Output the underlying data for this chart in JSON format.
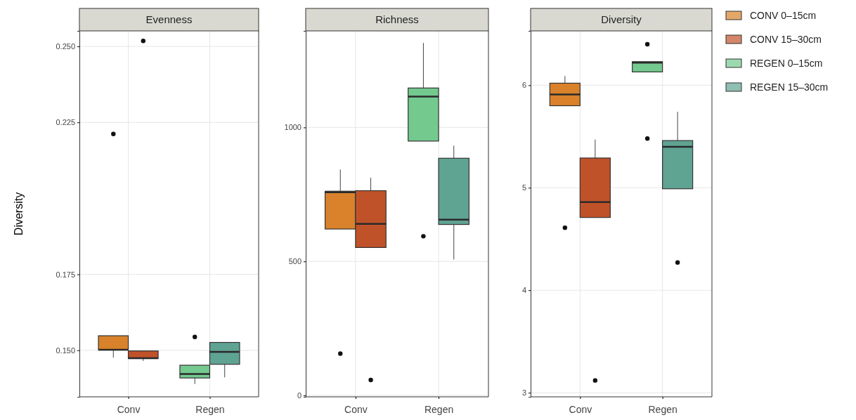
{
  "chart_data": [
    {
      "type": "box",
      "title": "Evenness",
      "ylabel": "Diversity",
      "categories": [
        "Conv",
        "Regen"
      ],
      "ylim": [
        0.1347,
        0.2551
      ],
      "yticks": [
        {
          "value": 0.25,
          "label": "0.250"
        },
        {
          "value": 0.225,
          "label": "0.225"
        },
        {
          "value": 0.175,
          "label": "0.175"
        },
        {
          "value": 0.15,
          "label": "0.150"
        }
      ],
      "grid": true,
      "series": [
        {
          "color": "#d9822b",
          "boxes": [
            {
              "low": 0.1476,
              "q1": 0.1502,
              "median": 0.1502,
              "q3": 0.1548,
              "high": 0.1548,
              "outliers": [
                0.2212
              ]
            },
            null
          ]
        },
        {
          "color": "#c0522a",
          "boxes": [
            {
              "low": 0.1465,
              "q1": 0.1473,
              "median": 0.1474,
              "q3": 0.1498,
              "high": 0.1498,
              "outliers": [
                0.2518
              ]
            },
            null
          ]
        },
        {
          "color": "#74c98f",
          "boxes": [
            null,
            {
              "low": 0.1389,
              "q1": 0.1409,
              "median": 0.1422,
              "q3": 0.1451,
              "high": 0.1451,
              "outliers": [
                0.1544
              ]
            }
          ]
        },
        {
          "color": "#5fa392",
          "boxes": [
            null,
            {
              "low": 0.1411,
              "q1": 0.1454,
              "median": 0.1495,
              "q3": 0.1526,
              "high": 0.1526
            }
          ]
        }
      ]
    },
    {
      "type": "box",
      "title": "Richness",
      "categories": [
        "Conv",
        "Regen"
      ],
      "ylim": [
        -5,
        1360
      ],
      "yticks": [
        0,
        500,
        1000
      ],
      "grid": true,
      "series": [
        {
          "color": "#d9822b",
          "boxes": [
            {
              "low": 621,
              "q1": 621,
              "median": 758,
              "q3": 762,
              "high": 843,
              "outliers": [
                156
              ]
            },
            null
          ]
        },
        {
          "color": "#c0522a",
          "boxes": [
            {
              "low": 552,
              "q1": 552,
              "median": 640,
              "q3": 764,
              "high": 812,
              "outliers": [
                58
              ]
            },
            null
          ]
        },
        {
          "color": "#74c98f",
          "boxes": [
            null,
            {
              "low": 949,
              "q1": 949,
              "median": 1115,
              "q3": 1147,
              "high": 1315,
              "outliers": [
                594
              ]
            }
          ]
        },
        {
          "color": "#5fa392",
          "boxes": [
            null,
            {
              "low": 507,
              "q1": 638,
              "median": 656,
              "q3": 885,
              "high": 932
            }
          ]
        }
      ]
    },
    {
      "type": "box",
      "title": "Diversity",
      "categories": [
        "Conv",
        "Regen"
      ],
      "ylim": [
        2.96,
        6.53
      ],
      "yticks": [
        3,
        4,
        5,
        6
      ],
      "grid": true,
      "legend": "right",
      "series": [
        {
          "name": "CONV 0–15cm",
          "color": "#d9822b",
          "boxes": [
            {
              "low": 5.8,
              "q1": 5.8,
              "median": 5.91,
              "q3": 6.02,
              "high": 6.09,
              "outliers": [
                4.61
              ]
            },
            null
          ]
        },
        {
          "name": "CONV 15–30cm",
          "color": "#c0522a",
          "boxes": [
            {
              "low": 4.71,
              "q1": 4.71,
              "median": 4.86,
              "q3": 5.29,
              "high": 5.47,
              "outliers": [
                3.12
              ]
            },
            null
          ]
        },
        {
          "name": "REGEN 0–15cm",
          "color": "#74c98f",
          "boxes": [
            null,
            {
              "low": 6.13,
              "q1": 6.13,
              "median": 6.22,
              "q3": 6.23,
              "high": 6.23,
              "outliers": [
                6.4,
                5.48
              ]
            }
          ]
        },
        {
          "name": "REGEN 15–30cm",
          "color": "#5fa392",
          "boxes": [
            null,
            {
              "low": 4.99,
              "q1": 4.99,
              "median": 5.4,
              "q3": 5.46,
              "high": 5.74,
              "outliers": [
                4.27
              ]
            }
          ]
        }
      ]
    }
  ]
}
